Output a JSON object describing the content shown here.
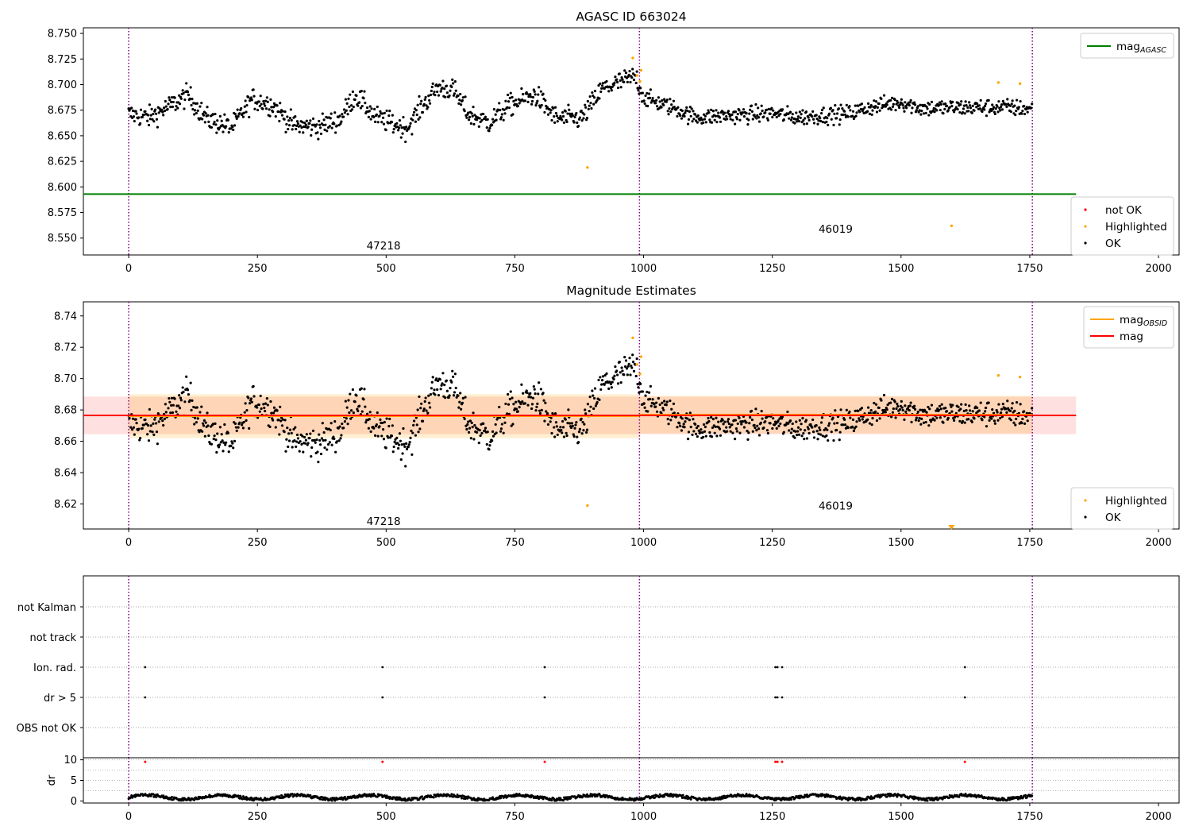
{
  "chart_data": [
    {
      "type": "scatter",
      "title": "AGASC ID 663024",
      "xlim": [
        -88,
        2040
      ],
      "ylim": [
        8.5335,
        8.7555
      ],
      "xticks": [
        0,
        250,
        500,
        750,
        1000,
        1250,
        1500,
        1750,
        2000
      ],
      "yticks": [
        "8.550",
        "8.575",
        "8.600",
        "8.625",
        "8.650",
        "8.675",
        "8.700",
        "8.725",
        "8.750"
      ],
      "ytick_values": [
        8.55,
        8.575,
        8.6,
        8.625,
        8.65,
        8.675,
        8.7,
        8.725,
        8.75
      ],
      "vlines": [
        0,
        992,
        1755
      ],
      "hline": {
        "name": "mag",
        "sub": "AGASC",
        "y": 8.593,
        "x0": -88,
        "x1": 1840,
        "color": "#008000"
      },
      "segments": [
        {
          "obsid": "47218",
          "x0": 0,
          "x1": 992,
          "label_x": 495,
          "label_y": 8.543
        },
        {
          "obsid": "46019",
          "x0": 992,
          "x1": 1755,
          "label_x": 1373,
          "label_y": 8.559
        }
      ],
      "highlighted_points": [
        [
          979,
          8.726
        ],
        [
          987,
          8.709
        ],
        [
          993,
          8.703
        ],
        [
          995,
          8.714
        ],
        [
          891,
          8.619
        ],
        [
          1598,
          8.562
        ],
        [
          1689,
          8.702
        ],
        [
          1731,
          8.701
        ]
      ],
      "legend_top": [
        {
          "label": "mag",
          "sub": "AGASC",
          "color": "#008000"
        }
      ],
      "legend_bottom": [
        {
          "label": "not OK",
          "color": "#ff0000"
        },
        {
          "label": "Highlighted",
          "color": "#ffa500"
        },
        {
          "label": "OK",
          "color": "#000000"
        }
      ]
    },
    {
      "type": "scatter",
      "title": "Magnitude Estimates",
      "xlim": [
        -88,
        2040
      ],
      "ylim": [
        8.604,
        8.749
      ],
      "xticks": [
        0,
        250,
        500,
        750,
        1000,
        1250,
        1500,
        1750,
        2000
      ],
      "yticks": [
        "8.62",
        "8.64",
        "8.66",
        "8.68",
        "8.70",
        "8.72",
        "8.74"
      ],
      "ytick_values": [
        8.62,
        8.64,
        8.66,
        8.68,
        8.7,
        8.72,
        8.74
      ],
      "vlines": [
        0,
        992,
        1755
      ],
      "mag": {
        "y": 8.6765,
        "band": [
          8.6645,
          8.6885
        ],
        "x0": -88,
        "x1": 1840,
        "color": "#ff0000"
      },
      "obsid_mags": [
        {
          "obsid": "47218",
          "x0": 0,
          "x1": 992,
          "y": 8.676,
          "band": [
            8.662,
            8.69
          ],
          "label_x": 495,
          "label_y": 8.609
        },
        {
          "obsid": "46019",
          "x0": 992,
          "x1": 1755,
          "y": 8.677,
          "band": [
            8.665,
            8.689
          ],
          "label_x": 1373,
          "label_y": 8.619
        }
      ],
      "highlighted_points": [
        [
          979,
          8.726
        ],
        [
          987,
          8.709
        ],
        [
          993,
          8.703
        ],
        [
          995,
          8.714
        ],
        [
          891,
          8.619
        ],
        [
          1689,
          8.702
        ],
        [
          1731,
          8.701
        ]
      ],
      "marker": {
        "x": 1598,
        "y": 8.605
      },
      "legend_top": [
        {
          "label": "mag",
          "sub": "OBSID",
          "color": "#ffa500"
        },
        {
          "label": "mag",
          "sub": "",
          "color": "#ff0000"
        }
      ],
      "legend_bottom": [
        {
          "label": "Highlighted",
          "color": "#ffa500"
        },
        {
          "label": "OK",
          "color": "#000000"
        }
      ]
    },
    {
      "type": "scatter",
      "title": "",
      "categories": [
        "not Kalman",
        "not track",
        "Ion. rad.",
        "dr > 5",
        "OBS not OK"
      ],
      "flag_points": {
        "Ion. rad.": [
          32,
          493,
          808,
          1256,
          1260,
          1269,
          1624
        ],
        "dr > 5": [
          32,
          493,
          808,
          1256,
          1260,
          1269,
          1624
        ]
      },
      "vlines": [
        0,
        992,
        1755
      ],
      "xlim": [
        -88,
        2040
      ]
    },
    {
      "type": "scatter",
      "ylabel": "dr",
      "yticks": [
        "0",
        "5",
        "10"
      ],
      "ytick_values": [
        0,
        5,
        10
      ],
      "ylim": [
        -0.5,
        10.5
      ],
      "xlim": [
        -88,
        2040
      ],
      "xticks": [
        0,
        250,
        500,
        750,
        1000,
        1250,
        1500,
        1750,
        2000
      ],
      "red_points": [
        [
          32,
          9.5
        ],
        [
          493,
          9.5
        ],
        [
          808,
          9.5
        ],
        [
          1256,
          9.5
        ],
        [
          1260,
          9.5
        ],
        [
          1269,
          9.5
        ],
        [
          1624,
          9.5
        ]
      ],
      "vlines": [
        0,
        992,
        1755
      ]
    }
  ],
  "colors": {
    "ok": "#000000",
    "highlighted": "#ffa500",
    "not_ok": "#ff0000",
    "vline": "#800080",
    "agasc": "#008000",
    "mag": "#ff0000",
    "obsid": "#ffa500"
  }
}
